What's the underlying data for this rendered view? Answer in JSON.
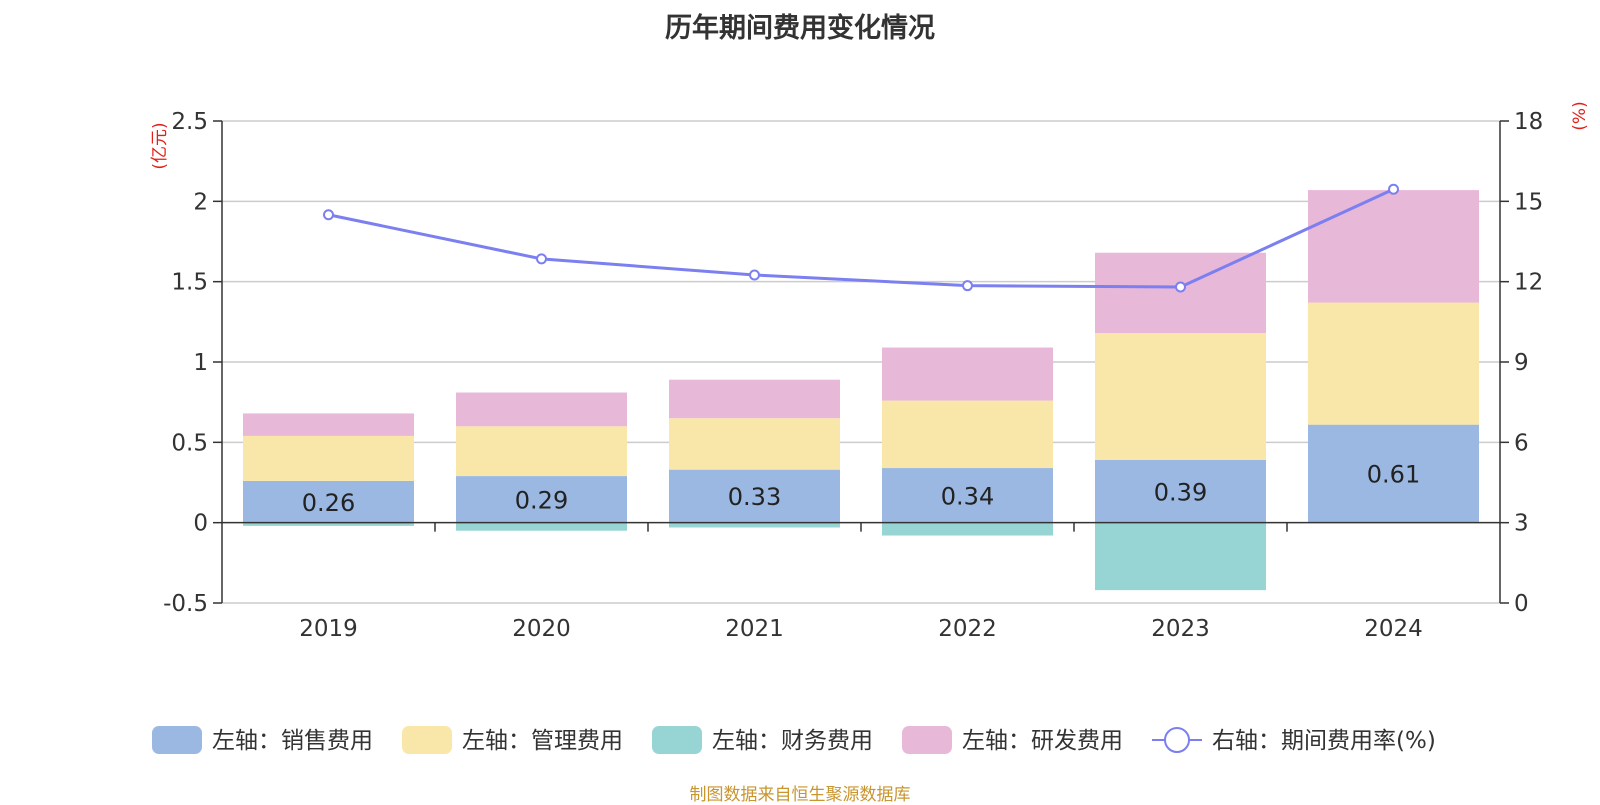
{
  "chart_data": {
    "type": "bar",
    "title": "历年期间费用变化情况",
    "categories": [
      "2019",
      "2020",
      "2021",
      "2022",
      "2023",
      "2024"
    ],
    "left_axis": {
      "unit_label": "(亿元)",
      "ylim": [
        -0.5,
        2.5
      ],
      "ticks": [
        "2.5",
        "2",
        "1.5",
        "1",
        "0.5",
        "0",
        "-0.5"
      ],
      "tick_values": [
        2.5,
        2,
        1.5,
        1,
        0.5,
        0,
        -0.5
      ]
    },
    "right_axis": {
      "unit_label": "(%)",
      "ylim": [
        0,
        18
      ],
      "ticks": [
        "18",
        "15",
        "12",
        "9",
        "6",
        "3",
        "0"
      ],
      "tick_values": [
        18,
        15,
        12,
        9,
        6,
        3,
        0
      ]
    },
    "series": [
      {
        "name": "左轴：销售费用",
        "type": "bar",
        "axis": "left",
        "color": "#9bb8e2",
        "values": [
          0.26,
          0.29,
          0.33,
          0.34,
          0.39,
          0.61
        ],
        "labels": [
          "0.26",
          "0.29",
          "0.33",
          "0.34",
          "0.39",
          "0.61"
        ]
      },
      {
        "name": "左轴：管理费用",
        "type": "bar",
        "axis": "left",
        "color": "#f8e7a8",
        "values": [
          0.28,
          0.31,
          0.32,
          0.42,
          0.79,
          0.76
        ]
      },
      {
        "name": "左轴：财务费用",
        "type": "bar",
        "axis": "left",
        "color": "#97d4d4",
        "values": [
          -0.02,
          -0.05,
          -0.03,
          -0.08,
          -0.42,
          0.0
        ]
      },
      {
        "name": "左轴：研发费用",
        "type": "bar",
        "axis": "left",
        "color": "#e8b8d9",
        "values": [
          0.14,
          0.21,
          0.24,
          0.33,
          0.5,
          0.7
        ]
      },
      {
        "name": "右轴：期间费用率(%)",
        "type": "line",
        "axis": "right",
        "color": "#7b7ff0",
        "values": [
          14.5,
          12.85,
          12.25,
          11.85,
          11.8,
          15.45
        ]
      }
    ],
    "legend_position": "bottom",
    "grid": true
  },
  "source_text": "制图数据来自恒生聚源数据库",
  "colors": {
    "axis_unit": "#e0201a",
    "grid": "#cccccc",
    "axis": "#333333",
    "text": "#333333",
    "source": "#c8952e"
  }
}
